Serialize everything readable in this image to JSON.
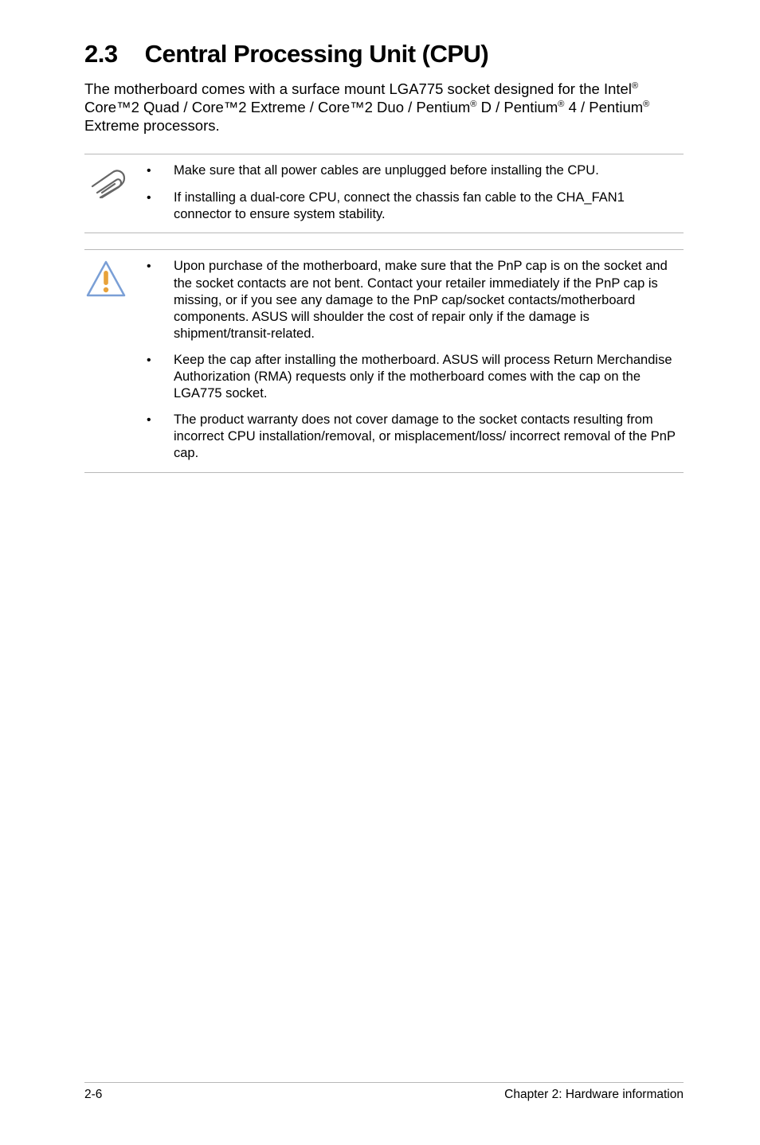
{
  "heading": {
    "number": "2.3",
    "title": "Central Processing Unit (CPU)"
  },
  "intro": {
    "html": "The motherboard comes with a surface mount LGA775 socket designed for the Intel<sup>®</sup> Core™2 Quad / Core™2 Extreme / Core™2 Duo / Pentium<sup>®</sup> D / Pentium<sup>®</sup> 4 / Pentium<sup>®</sup> Extreme processors."
  },
  "note1": {
    "iconName": "paperclip-icon",
    "bullets": [
      "Make sure that all power cables are unplugged before installing the CPU.",
      "If installing a dual-core CPU, connect the chassis fan cable to the CHA_FAN1 connector to ensure system stability."
    ]
  },
  "note2": {
    "iconName": "warning-icon",
    "bullets": [
      "Upon purchase of the motherboard, make sure that the PnP cap is on the socket and the socket contacts are not bent. Contact your retailer immediately if the PnP cap is missing, or if you see any damage to the PnP cap/socket contacts/motherboard components. ASUS will shoulder the cost of repair only if the damage is shipment/transit-related.",
      "Keep the cap after installing the motherboard. ASUS will process Return Merchandise Authorization (RMA) requests only if the motherboard comes with the cap on the LGA775 socket.",
      "The product warranty does not cover damage to the socket contacts resulting from incorrect CPU installation/removal, or misplacement/loss/ incorrect removal of the PnP cap."
    ]
  },
  "footer": {
    "left": "2-6",
    "right": "Chapter 2: Hardware information"
  },
  "icons": {
    "paperclipStroke": "#666666",
    "warningStroke": "#7a9fd6",
    "warningFill": "#ffffff",
    "warningBar": "#e8a23a"
  }
}
